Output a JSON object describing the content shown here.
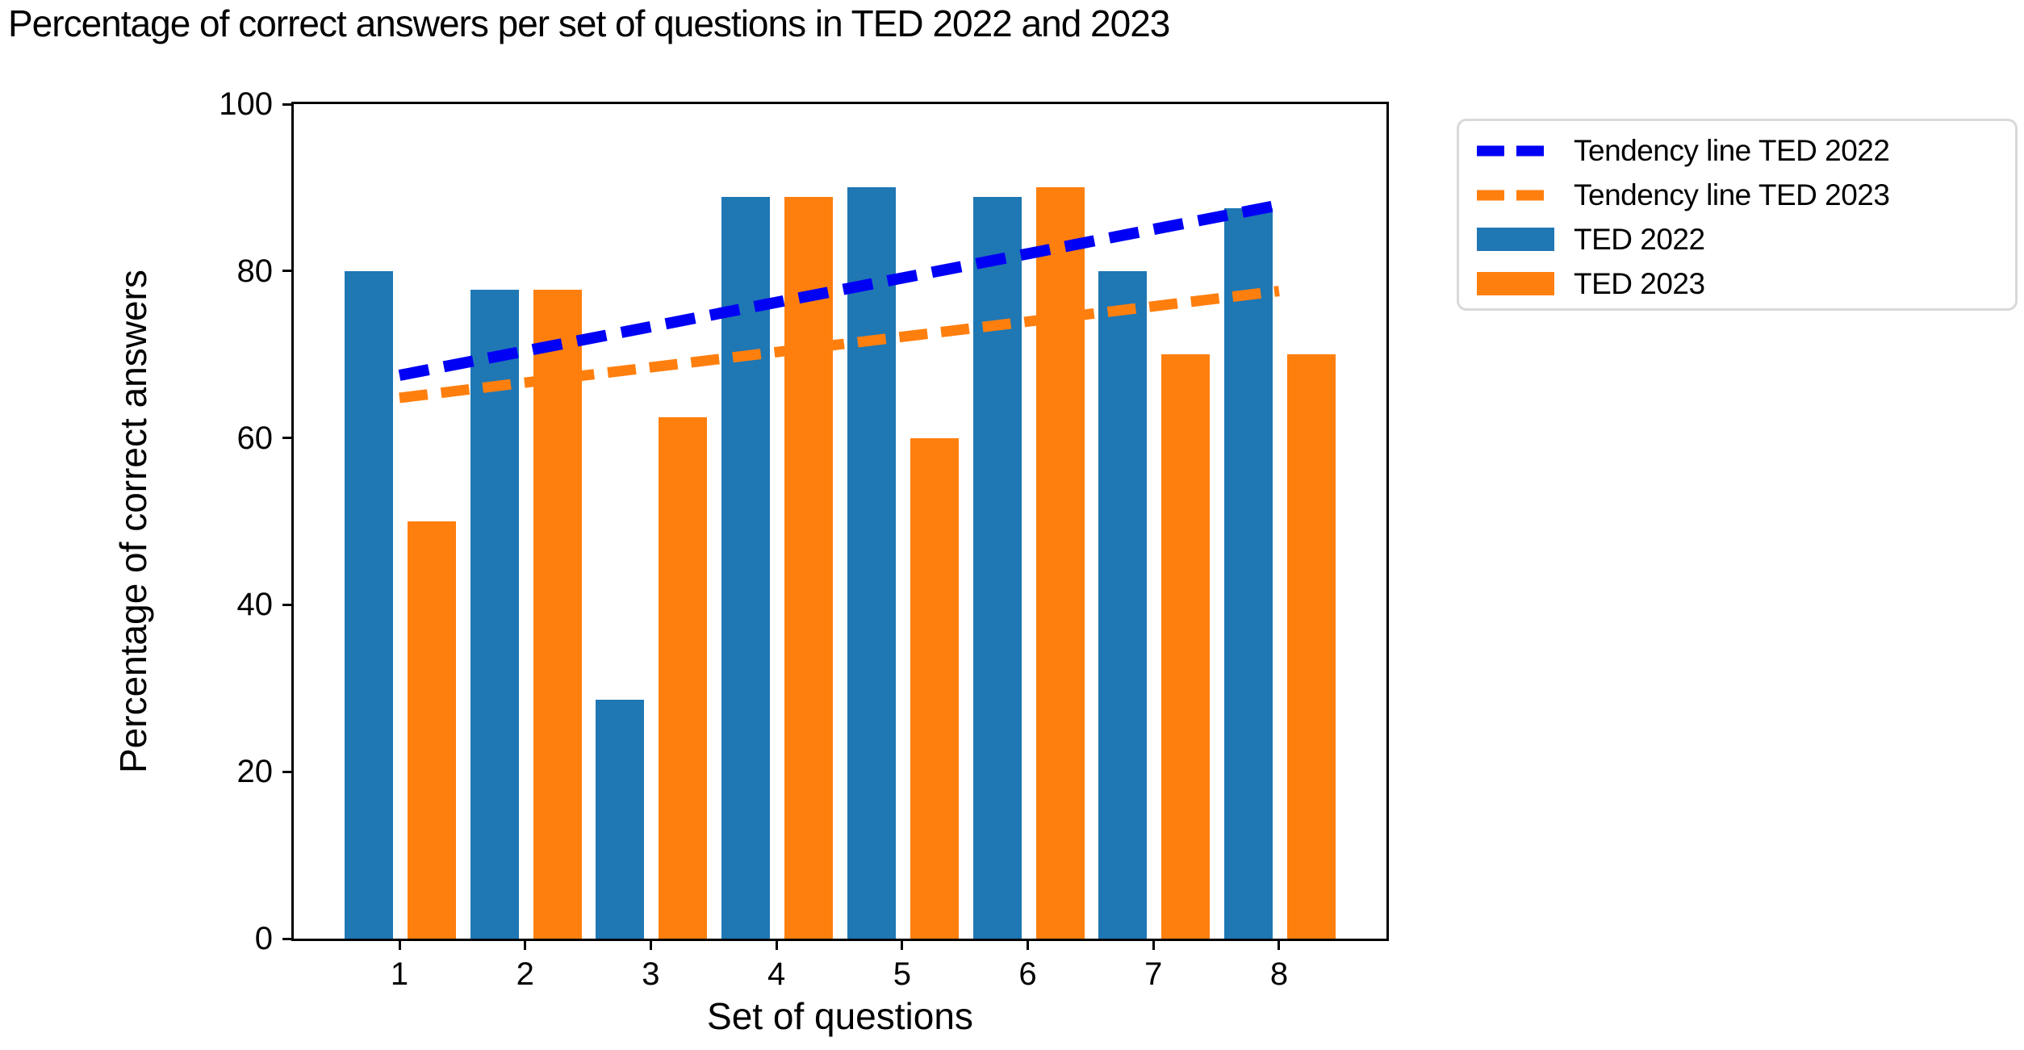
{
  "chart_data": {
    "type": "bar",
    "title": "Percentage of correct answers per set of questions in TED 2022 and 2023",
    "xlabel": "Set of questions",
    "ylabel": "Percentage of correct answers",
    "categories": [
      "1",
      "2",
      "3",
      "4",
      "5",
      "6",
      "7",
      "8"
    ],
    "series": [
      {
        "name": "TED 2022",
        "color": "#1f77b4",
        "values": [
          80,
          77.8,
          28.6,
          88.9,
          90,
          88.9,
          80,
          87.5
        ]
      },
      {
        "name": "TED 2023",
        "color": "#ff7f0e",
        "values": [
          50,
          77.8,
          62.5,
          88.9,
          60,
          90,
          70,
          70
        ]
      }
    ],
    "trend_lines": [
      {
        "name": "Tendency line TED 2022",
        "color": "#0000f5",
        "style": "dashed",
        "x_start": 1,
        "y_start": 67.5,
        "x_end": 8,
        "y_end": 87.9
      },
      {
        "name": "Tendency line TED 2023",
        "color": "#ff7f0e",
        "style": "dashed",
        "x_start": 1,
        "y_start": 64.8,
        "x_end": 8,
        "y_end": 77.6
      }
    ],
    "ylim": [
      0,
      100
    ],
    "yticks": [
      0,
      20,
      40,
      60,
      80,
      100
    ],
    "grid": false,
    "legend_position": "outside-upper-right",
    "legend_items": [
      {
        "label": "Tendency line TED 2022",
        "swatch": "dashed-line",
        "color": "#0000f5"
      },
      {
        "label": "Tendency line TED 2023",
        "swatch": "dashed-line",
        "color": "#ff7f0e"
      },
      {
        "label": "TED 2022",
        "swatch": "rect",
        "color": "#1f77b4"
      },
      {
        "label": "TED 2023",
        "swatch": "rect",
        "color": "#ff7f0e"
      }
    ]
  }
}
